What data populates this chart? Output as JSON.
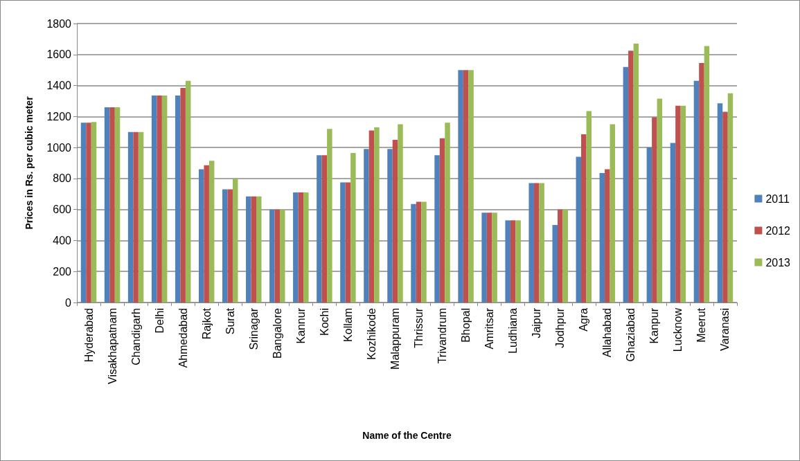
{
  "chart_data": {
    "type": "bar",
    "xlabel": "Name of the Centre",
    "ylabel": "Prices in Rs. per cubic meter",
    "categories": [
      "Hyderabad",
      "Visakhapatnam",
      "Chandigarh",
      "Delhi",
      "Ahmedabad",
      "Rajkot",
      "Surat",
      "Srinagar",
      "Bangalore",
      "Kannur",
      "Kochi",
      "Kollam",
      "Kozhikode",
      "Malappuram",
      "Thrissur",
      "Trivandrum",
      "Bhopal",
      "Amritsar",
      "Ludhiana",
      "Jaipur",
      "Jodhpur",
      "Agra",
      "Allahabad",
      "Ghaziabad",
      "Kanpur",
      "Lucknow",
      "Meerut",
      "Varanasi"
    ],
    "series": [
      {
        "name": "2011",
        "color": "#4f81bd",
        "values": [
          1160,
          1260,
          1100,
          1335,
          1335,
          860,
          730,
          685,
          600,
          710,
          950,
          775,
          990,
          990,
          635,
          950,
          1500,
          580,
          530,
          770,
          500,
          940,
          835,
          1520,
          1000,
          1030,
          1430,
          1285
        ]
      },
      {
        "name": "2012",
        "color": "#c0504d",
        "values": [
          1160,
          1260,
          1100,
          1335,
          1385,
          885,
          730,
          685,
          600,
          710,
          950,
          775,
          1110,
          1050,
          650,
          1060,
          1500,
          580,
          530,
          770,
          600,
          1085,
          860,
          1625,
          1195,
          1270,
          1545,
          1230
        ]
      },
      {
        "name": "2013",
        "color": "#9bbb59",
        "values": [
          1165,
          1260,
          1100,
          1335,
          1430,
          915,
          800,
          685,
          600,
          710,
          1120,
          965,
          1130,
          1150,
          650,
          1160,
          1500,
          580,
          530,
          770,
          600,
          1235,
          1150,
          1670,
          1315,
          1270,
          1655,
          1350
        ]
      }
    ],
    "ylim": [
      0,
      1800
    ],
    "yticks": [
      0,
      200,
      400,
      600,
      800,
      1000,
      1200,
      1400,
      1600,
      1800
    ],
    "grid": "y",
    "legend": "right"
  }
}
